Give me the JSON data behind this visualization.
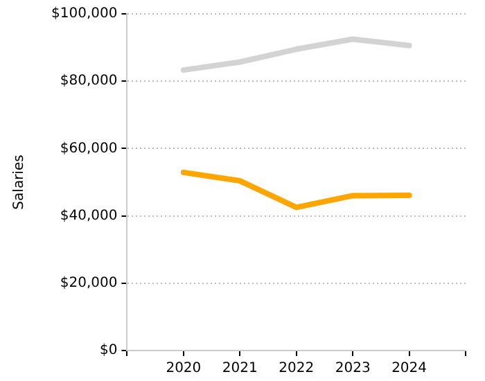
{
  "chart_data": {
    "type": "line",
    "ylabel": "Salaries",
    "x": [
      2020,
      2021,
      2022,
      2023,
      2024
    ],
    "series": [
      {
        "color": "#d3d3d3",
        "values": [
          83300,
          85700,
          89500,
          92500,
          90600
        ]
      },
      {
        "color": "#ffa500",
        "values": [
          52900,
          50400,
          42500,
          46000,
          46100
        ]
      }
    ],
    "xlim": [
      2019,
      2025
    ],
    "xticks": [
      {
        "value": 2019,
        "label": null
      },
      2020,
      2021,
      2022,
      2023,
      2024,
      {
        "value": 2025,
        "label": null
      }
    ],
    "ylim": [
      0,
      100000
    ],
    "yticks": [
      {
        "value": 0,
        "label": "$0"
      },
      {
        "value": 20000,
        "label": "$20,000"
      },
      {
        "value": 40000,
        "label": "$40,000"
      },
      {
        "value": 60000,
        "label": "$60,000"
      },
      {
        "value": 80000,
        "label": "$80,000"
      },
      {
        "value": 100000,
        "label": "$100,000"
      }
    ],
    "grid": "y",
    "legend": false,
    "marker": "none",
    "line_style": "solid"
  }
}
